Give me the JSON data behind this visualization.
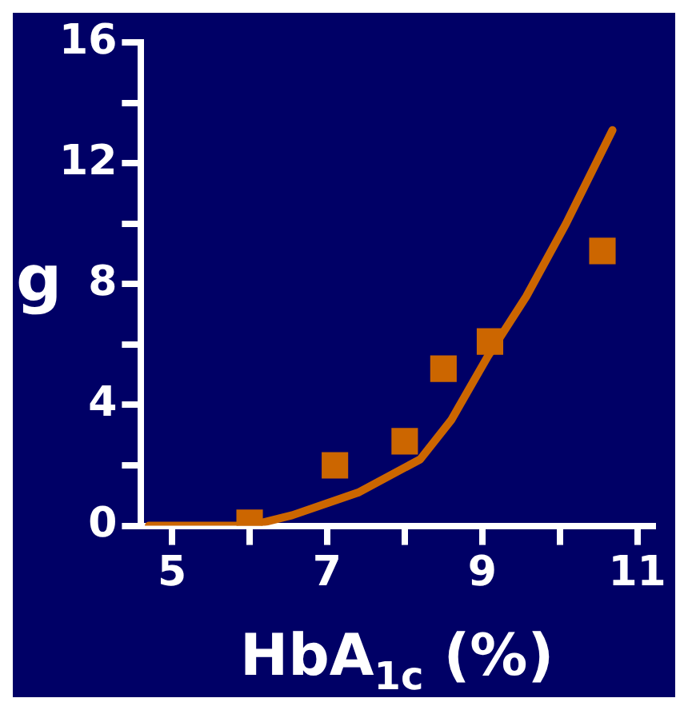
{
  "chart_data": {
    "type": "scatter",
    "xlabel": "HbA$_{1c}$ (%)",
    "ylabel": "g",
    "xlim": [
      4.6,
      11.2
    ],
    "xticks": [
      5,
      {
        "value": 6,
        "label": null
      },
      7,
      {
        "value": 8,
        "label": null
      },
      9,
      {
        "value": 10,
        "label": null
      },
      11
    ],
    "ylim": [
      0,
      16
    ],
    "yticks": [
      0,
      {
        "value": 2,
        "label": null
      },
      4,
      {
        "value": 6,
        "label": null
      },
      8,
      {
        "value": 10,
        "label": null
      },
      12,
      {
        "value": 14,
        "label": null
      },
      16
    ],
    "grid": false,
    "legend": false,
    "series": [
      {
        "marker": "square",
        "color": "#cc6600",
        "x": [
          6.0,
          7.1,
          8.0,
          8.5,
          9.1,
          10.55
        ],
        "values": [
          0.1,
          2.0,
          2.8,
          5.2,
          6.1,
          9.1
        ]
      },
      {
        "type": "line",
        "marker": "none",
        "line_style": "solid",
        "color": "#cc6600",
        "x": [
          4.7,
          5.5,
          6.0,
          6.55,
          7.4,
          8.2,
          8.6,
          9.07,
          9.57,
          10.08,
          10.68
        ],
        "values": [
          0,
          0,
          0,
          0.35,
          1.1,
          2.2,
          3.5,
          5.6,
          7.6,
          10.0,
          13.1
        ]
      }
    ]
  }
}
